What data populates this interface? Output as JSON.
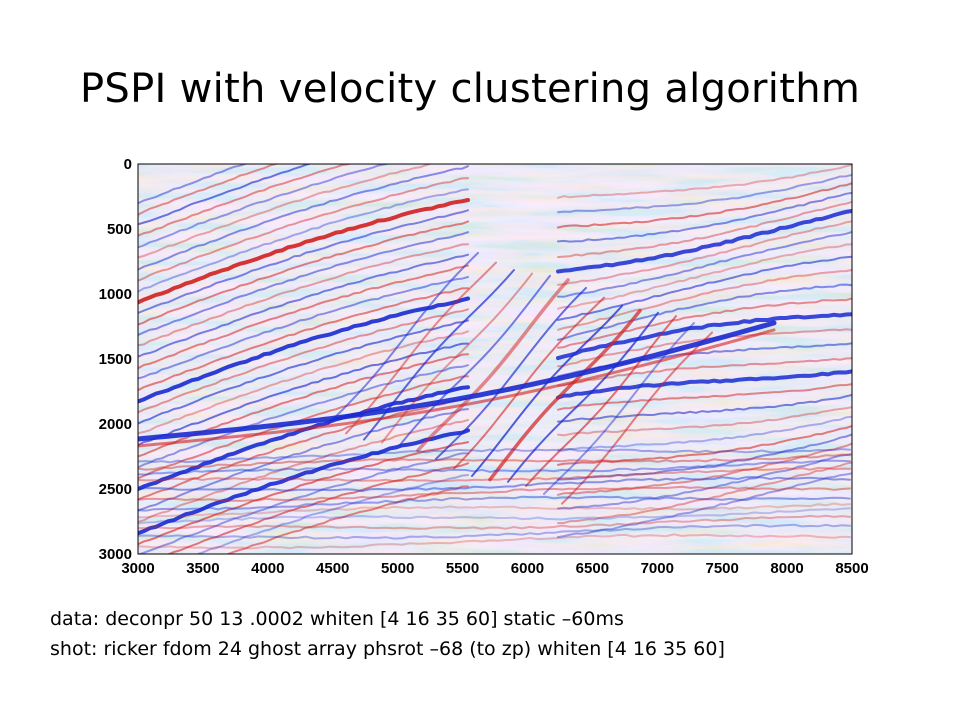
{
  "slide": {
    "title": "PSPI with velocity clustering algorithm"
  },
  "caption": {
    "data_line": "data: deconpr 50 13 .0002  whiten [4 16 35 60] static –60ms",
    "shot_line": "shot: ricker fdom 24 ghost array phsrot –68 (to zp) whiten [4 16 35 60]"
  },
  "seismic_image": {
    "colormap": {
      "positive": "#d22020",
      "negative": "#1a2ad0",
      "zero": "#ffffff"
    },
    "x_ticks": [
      "3000",
      "3500",
      "4000",
      "4500",
      "5000",
      "5500",
      "6000",
      "6500",
      "7000",
      "7500",
      "8000",
      "8500"
    ],
    "y_ticks": [
      "0",
      "500",
      "1000",
      "1500",
      "2000",
      "2500",
      "3000"
    ],
    "x_range": [
      3000,
      8500
    ],
    "y_range": [
      0,
      3000
    ],
    "y_reversed": true
  }
}
